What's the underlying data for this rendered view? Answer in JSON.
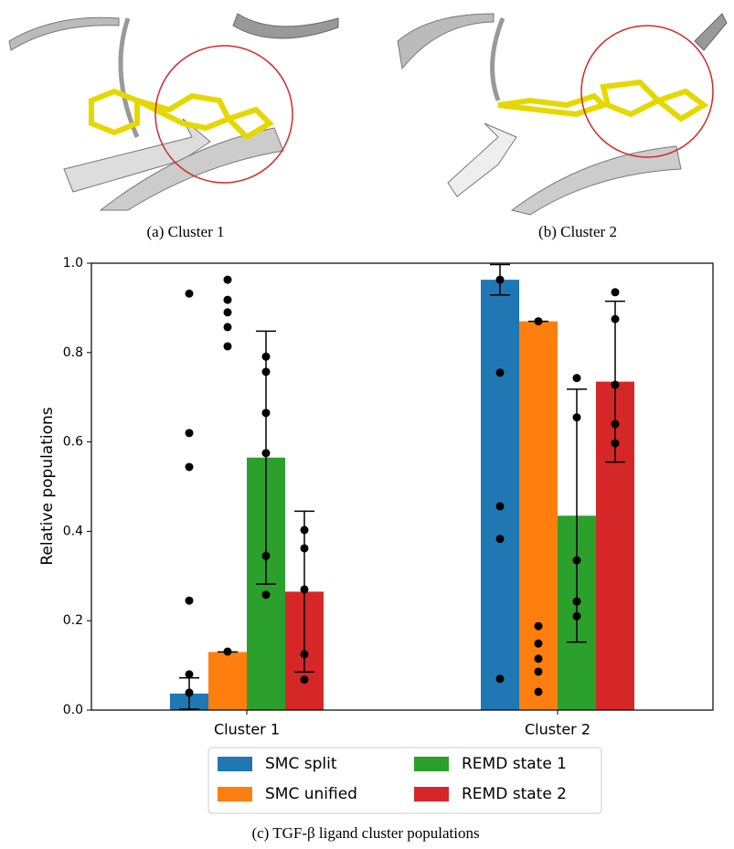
{
  "panels": [
    {
      "caption": "(a) Cluster 1"
    },
    {
      "caption": "(b) Cluster 2"
    }
  ],
  "chart_data": {
    "type": "bar",
    "caption": "(c) TGF-β ligand cluster populations",
    "ylabel": "Relative populations",
    "categories": [
      "Cluster 1",
      "Cluster 2"
    ],
    "ylim": [
      0,
      1
    ],
    "yticks": [
      {
        "value": 0,
        "label": "0.0"
      },
      {
        "value": 0.2,
        "label": "0.2"
      },
      {
        "value": 0.4,
        "label": "0.4"
      },
      {
        "value": 0.6,
        "label": "0.6"
      },
      {
        "value": 0.8,
        "label": "0.8"
      },
      {
        "value": 1,
        "label": "1.0"
      }
    ],
    "legend": "bottom",
    "series": [
      {
        "name": "SMC split",
        "color": "#1f77b4",
        "values": [
          0.037,
          0.963
        ],
        "errors": [
          0.035,
          0.034
        ],
        "points": [
          [
            0.932,
            0.62,
            0.544,
            0.245,
            0.08,
            0.039
          ],
          [
            0.963,
            0.755,
            0.456,
            0.383,
            0.07
          ]
        ]
      },
      {
        "name": "SMC unified",
        "color": "#ff7f0e",
        "values": [
          0.13,
          0.87
        ],
        "errors": [
          0,
          0
        ],
        "points": [
          [
            0.963,
            0.918,
            0.89,
            0.857,
            0.814,
            0.131
          ],
          [
            0.87,
            0.188,
            0.149,
            0.115,
            0.086,
            0.041
          ]
        ]
      },
      {
        "name": "REMD state 1",
        "color": "#2ca02c",
        "values": [
          0.565,
          0.435
        ],
        "errors": [
          0.283,
          0.283
        ],
        "points": [
          [
            0.791,
            0.757,
            0.665,
            0.575,
            0.345,
            0.258
          ],
          [
            0.743,
            0.655,
            0.335,
            0.243,
            0.21
          ]
        ]
      },
      {
        "name": "REMD state 2",
        "color": "#d62728",
        "values": [
          0.265,
          0.735
        ],
        "errors": [
          0.18,
          0.18
        ],
        "points": [
          [
            0.403,
            0.362,
            0.27,
            0.125,
            0.068
          ],
          [
            0.935,
            0.875,
            0.728,
            0.64,
            0.597
          ]
        ]
      }
    ]
  }
}
